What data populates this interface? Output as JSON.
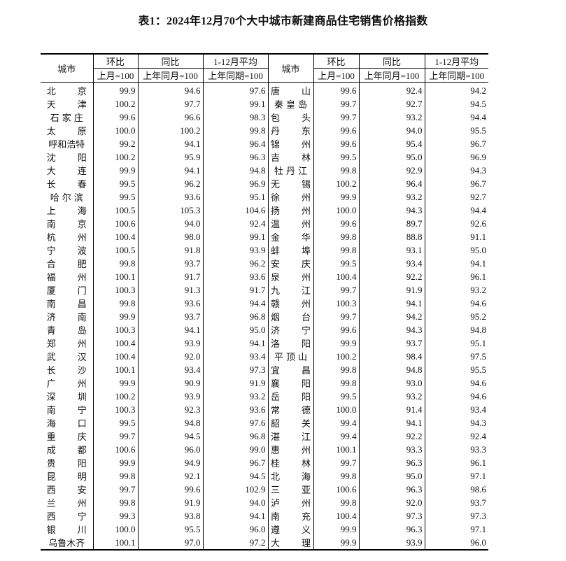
{
  "title": "表1：2024年12月70个大中城市新建商品住宅销售价格指数",
  "header": {
    "city": "城市",
    "mom": "环比",
    "yoy": "同比",
    "avg": "1-12月平均",
    "mom_base": "上月=100",
    "yoy_base": "上年同月=100",
    "avg_base": "上年同期=100"
  },
  "left_rows": [
    [
      "北京",
      "99.9",
      "94.6",
      "97.6"
    ],
    [
      "天津",
      "100.2",
      "97.7",
      "99.1"
    ],
    [
      "石家庄",
      "99.6",
      "96.6",
      "98.3"
    ],
    [
      "太原",
      "100.0",
      "100.2",
      "99.8"
    ],
    [
      "呼和浩特",
      "99.2",
      "94.1",
      "96.4"
    ],
    [
      "沈阳",
      "100.2",
      "95.9",
      "96.3"
    ],
    [
      "大连",
      "99.9",
      "94.1",
      "94.8"
    ],
    [
      "长春",
      "99.5",
      "96.2",
      "96.9"
    ],
    [
      "哈尔滨",
      "99.5",
      "93.6",
      "95.1"
    ],
    [
      "上海",
      "100.5",
      "105.3",
      "104.6"
    ],
    [
      "南京",
      "100.6",
      "94.0",
      "92.4"
    ],
    [
      "杭州",
      "100.4",
      "98.0",
      "99.1"
    ],
    [
      "宁波",
      "100.5",
      "91.8",
      "93.9"
    ],
    [
      "合肥",
      "99.8",
      "93.7",
      "96.2"
    ],
    [
      "福州",
      "100.1",
      "91.7",
      "93.6"
    ],
    [
      "厦门",
      "100.3",
      "91.3",
      "91.7"
    ],
    [
      "南昌",
      "99.8",
      "93.6",
      "94.4"
    ],
    [
      "济南",
      "99.9",
      "93.7",
      "96.8"
    ],
    [
      "青岛",
      "100.3",
      "94.1",
      "95.0"
    ],
    [
      "郑州",
      "100.4",
      "93.9",
      "94.1"
    ],
    [
      "武汉",
      "100.4",
      "92.0",
      "93.4"
    ],
    [
      "长沙",
      "100.1",
      "93.4",
      "97.3"
    ],
    [
      "广州",
      "99.9",
      "90.9",
      "91.9"
    ],
    [
      "深圳",
      "100.2",
      "93.9",
      "93.2"
    ],
    [
      "南宁",
      "100.3",
      "92.3",
      "93.6"
    ],
    [
      "海口",
      "99.5",
      "94.8",
      "97.6"
    ],
    [
      "重庆",
      "99.7",
      "94.5",
      "96.8"
    ],
    [
      "成都",
      "100.6",
      "96.0",
      "99.0"
    ],
    [
      "贵阳",
      "99.9",
      "94.9",
      "96.7"
    ],
    [
      "昆明",
      "99.8",
      "92.1",
      "94.5"
    ],
    [
      "西安",
      "99.7",
      "99.6",
      "102.9"
    ],
    [
      "兰州",
      "99.8",
      "91.9",
      "94.0"
    ],
    [
      "西宁",
      "99.3",
      "93.8",
      "94.1"
    ],
    [
      "银川",
      "100.0",
      "95.5",
      "96.0"
    ],
    [
      "乌鲁木齐",
      "100.1",
      "97.0",
      "97.2"
    ]
  ],
  "right_rows": [
    [
      "唐山",
      "99.6",
      "92.4",
      "94.2"
    ],
    [
      "秦皇岛",
      "99.7",
      "92.7",
      "94.5"
    ],
    [
      "包头",
      "99.7",
      "93.2",
      "94.4"
    ],
    [
      "丹东",
      "99.6",
      "94.0",
      "95.5"
    ],
    [
      "锦州",
      "99.6",
      "95.4",
      "96.7"
    ],
    [
      "吉林",
      "99.5",
      "95.0",
      "96.9"
    ],
    [
      "牡丹江",
      "99.8",
      "92.9",
      "94.3"
    ],
    [
      "无锡",
      "100.2",
      "96.4",
      "96.7"
    ],
    [
      "徐州",
      "99.9",
      "93.2",
      "92.7"
    ],
    [
      "扬州",
      "100.0",
      "94.3",
      "94.4"
    ],
    [
      "温州",
      "99.6",
      "89.7",
      "92.6"
    ],
    [
      "金华",
      "99.8",
      "88.8",
      "91.1"
    ],
    [
      "蚌埠",
      "99.8",
      "93.1",
      "95.0"
    ],
    [
      "安庆",
      "99.5",
      "93.4",
      "94.1"
    ],
    [
      "泉州",
      "100.4",
      "92.2",
      "96.1"
    ],
    [
      "九江",
      "99.7",
      "91.9",
      "93.2"
    ],
    [
      "赣州",
      "100.3",
      "94.1",
      "94.6"
    ],
    [
      "烟台",
      "99.7",
      "94.2",
      "95.2"
    ],
    [
      "济宁",
      "99.6",
      "94.3",
      "94.8"
    ],
    [
      "洛阳",
      "99.9",
      "93.7",
      "95.1"
    ],
    [
      "平顶山",
      "100.2",
      "98.4",
      "97.5"
    ],
    [
      "宜昌",
      "99.8",
      "94.8",
      "95.5"
    ],
    [
      "襄阳",
      "99.8",
      "93.0",
      "94.6"
    ],
    [
      "岳阳",
      "99.5",
      "93.2",
      "94.6"
    ],
    [
      "常德",
      "100.0",
      "91.4",
      "93.4"
    ],
    [
      "韶关",
      "99.4",
      "94.1",
      "94.3"
    ],
    [
      "湛江",
      "99.4",
      "92.2",
      "92.4"
    ],
    [
      "惠州",
      "100.1",
      "93.3",
      "93.3"
    ],
    [
      "桂林",
      "99.7",
      "96.3",
      "96.1"
    ],
    [
      "北海",
      "99.8",
      "95.0",
      "97.1"
    ],
    [
      "三亚",
      "100.6",
      "96.3",
      "98.6"
    ],
    [
      "泸州",
      "99.8",
      "92.0",
      "93.7"
    ],
    [
      "南充",
      "100.4",
      "97.3",
      "97.3"
    ],
    [
      "遵义",
      "99.9",
      "96.3",
      "97.1"
    ],
    [
      "大理",
      "99.9",
      "93.9",
      "96.0"
    ]
  ]
}
